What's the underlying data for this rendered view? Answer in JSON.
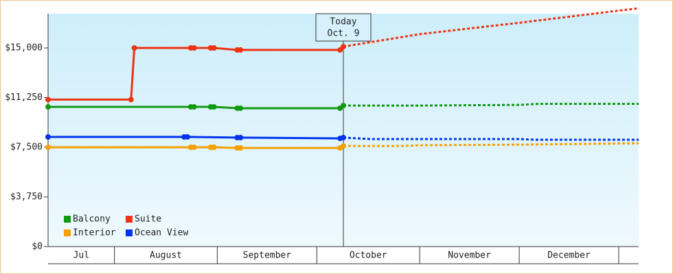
{
  "chart_data": {
    "type": "line",
    "ylim": [
      0,
      18000
    ],
    "yticks": [
      {
        "value": 0,
        "label": "$0"
      },
      {
        "value": 3750,
        "label": "$3,750"
      },
      {
        "value": 7500,
        "label": "$7,500"
      },
      {
        "value": 11250,
        "label": "$11,250"
      },
      {
        "value": 15000,
        "label": "$15,000"
      }
    ],
    "xlim": [
      193,
      371
    ],
    "xticks": [
      {
        "value": 182,
        "label": "Jul"
      },
      {
        "value": 213,
        "label": "August"
      },
      {
        "value": 244,
        "label": "September"
      },
      {
        "value": 274,
        "label": "October"
      },
      {
        "value": 305,
        "label": "November"
      },
      {
        "value": 335,
        "label": "December"
      }
    ],
    "today": {
      "x": 282,
      "label": "Today",
      "date": "Oct. 9"
    },
    "legend": "lower left",
    "series": [
      {
        "name": "Balcony",
        "color": "#119911",
        "x": [
          193,
          236,
          237,
          242,
          243,
          250,
          251,
          281,
          282,
          305,
          335,
          341,
          371
        ],
        "values": [
          10550,
          10550,
          10550,
          10550,
          10550,
          10450,
          10450,
          10450,
          10650,
          10650,
          10700,
          10780,
          10780
        ]
      },
      {
        "name": "Suite",
        "color": "#ee3311",
        "x": [
          193,
          218,
          219,
          236,
          237,
          242,
          243,
          250,
          251,
          281,
          282,
          305,
          335,
          371
        ],
        "values": [
          11100,
          11100,
          15000,
          15000,
          15000,
          15000,
          15000,
          14850,
          14850,
          14850,
          15100,
          16040,
          16900,
          18000
        ]
      },
      {
        "name": "Interior",
        "color": "#f5a000",
        "x": [
          193,
          236,
          237,
          242,
          243,
          250,
          251,
          281,
          282,
          300,
          305,
          335,
          371
        ],
        "values": [
          7500,
          7500,
          7500,
          7500,
          7500,
          7450,
          7450,
          7450,
          7600,
          7600,
          7650,
          7700,
          7800
        ]
      },
      {
        "name": "Ocean View",
        "color": "#0033ee",
        "x": [
          193,
          234,
          235,
          250,
          251,
          281,
          282,
          290,
          335,
          340,
          371
        ],
        "values": [
          8280,
          8280,
          8280,
          8230,
          8230,
          8170,
          8230,
          8120,
          8120,
          8070,
          8070
        ]
      }
    ]
  }
}
